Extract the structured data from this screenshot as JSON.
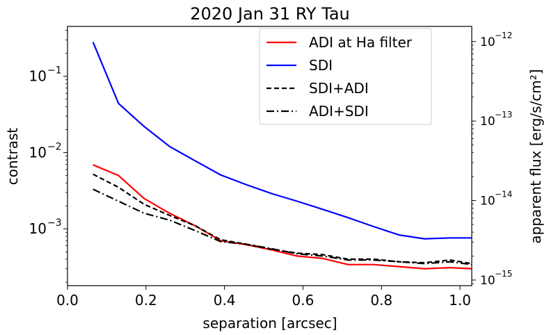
{
  "chart_data": {
    "type": "line",
    "title": "2020 Jan 31 RY Tau",
    "xlabel": "separation [arcsec]",
    "ylabel": "contrast",
    "y2label": "apparent flux [erg/s/cm²]",
    "xscale": "linear",
    "yscale": "log",
    "xlim": [
      0.0,
      1.03
    ],
    "ylim": [
      0.00018,
      0.45
    ],
    "xticks": [
      0.0,
      0.2,
      0.4,
      0.6,
      0.8,
      1.0
    ],
    "xtick_labels": [
      "0.0",
      "0.2",
      "0.4",
      "0.6",
      "0.8",
      "1.0"
    ],
    "yticks": [
      0.001,
      0.01,
      0.1
    ],
    "ytick_labels": [
      "10",
      "10",
      "10"
    ],
    "ytick_exponents": [
      "−3",
      "−2",
      "−1"
    ],
    "y2_range": [
      8.5e-16,
      1.55e-12
    ],
    "y2ticks": [
      1e-15,
      1e-14,
      1e-13,
      1e-12
    ],
    "y2tick_labels": [
      "10",
      "10",
      "10",
      "10"
    ],
    "y2tick_exponents": [
      "−15",
      "−14",
      "−13",
      "−12"
    ],
    "legend_position": "top-right",
    "series": [
      {
        "name": "ADI at Ha filter",
        "color": "#ff0000",
        "dash": "solid",
        "x": [
          0.065,
          0.13,
          0.195,
          0.26,
          0.325,
          0.39,
          0.455,
          0.52,
          0.585,
          0.65,
          0.715,
          0.78,
          0.845,
          0.91,
          0.975,
          1.03
        ],
        "y": [
          0.0069,
          0.005,
          0.0025,
          0.0016,
          0.0011,
          0.0007,
          0.00062,
          0.00053,
          0.00044,
          0.00041,
          0.00034,
          0.00034,
          0.00032,
          0.0003,
          0.00031,
          0.0003
        ]
      },
      {
        "name": "SDI",
        "color": "#0000ff",
        "dash": "solid",
        "x": [
          0.065,
          0.13,
          0.195,
          0.26,
          0.325,
          0.39,
          0.455,
          0.52,
          0.585,
          0.65,
          0.715,
          0.78,
          0.845,
          0.91,
          0.975,
          1.03
        ],
        "y": [
          0.28,
          0.044,
          0.022,
          0.012,
          0.0078,
          0.0051,
          0.0038,
          0.0029,
          0.0023,
          0.0018,
          0.0014,
          0.00107,
          0.00083,
          0.00074,
          0.00076,
          0.00076
        ]
      },
      {
        "name": "SDI+ADI",
        "color": "#000000",
        "dash": "dashed",
        "x": [
          0.065,
          0.13,
          0.195,
          0.26,
          0.325,
          0.39,
          0.455,
          0.52,
          0.585,
          0.65,
          0.715,
          0.78,
          0.845,
          0.91,
          0.975,
          1.03
        ],
        "y": [
          0.0052,
          0.0035,
          0.0021,
          0.0015,
          0.0011,
          0.00072,
          0.00063,
          0.00054,
          0.00048,
          0.00046,
          0.0004,
          0.0004,
          0.00037,
          0.00036,
          0.00039,
          0.00035
        ]
      },
      {
        "name": "ADI+SDI",
        "color": "#000000",
        "dash": "dashdot",
        "x": [
          0.065,
          0.13,
          0.195,
          0.26,
          0.325,
          0.39,
          0.455,
          0.52,
          0.585,
          0.65,
          0.715,
          0.78,
          0.845,
          0.91,
          0.975,
          1.03
        ],
        "y": [
          0.0033,
          0.0023,
          0.0016,
          0.0013,
          0.00095,
          0.00068,
          0.00063,
          0.00055,
          0.00047,
          0.00044,
          0.00039,
          0.00039,
          0.00037,
          0.00035,
          0.00037,
          0.00034
        ]
      }
    ]
  }
}
